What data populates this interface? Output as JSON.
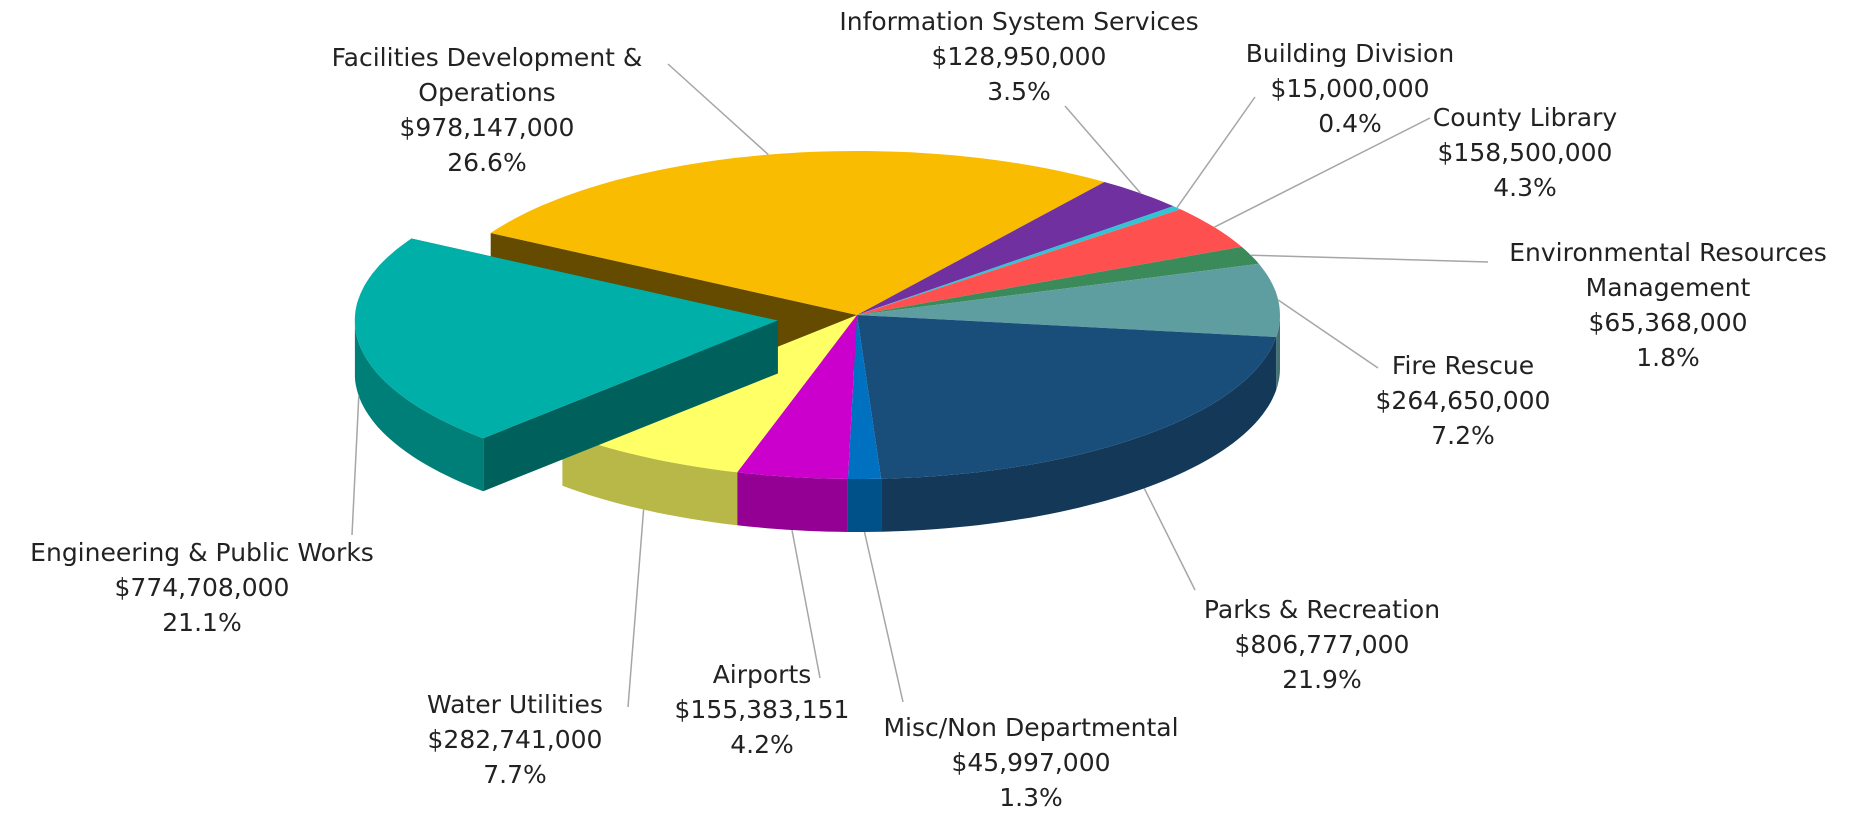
{
  "chart_data": {
    "type": "pie3d",
    "categories": [
      "Facilities Development & Operations",
      "Information System Services",
      "Building Division",
      "County Library",
      "Environmental Resources Management",
      "Fire Rescue",
      "Parks & Recreation",
      "Misc/Non Departmental",
      "Airports",
      "Water Utilities",
      "Engineering & Public Works"
    ],
    "values": [
      978147000,
      128950000,
      15000000,
      158500000,
      65368000,
      264650000,
      806777000,
      45997000,
      155383151,
      282741000,
      774708000
    ],
    "value_labels": [
      "$978,147,000",
      "$128,950,000",
      "$15,000,000",
      "$158,500,000",
      "$65,368,000",
      "$264,650,000",
      "$806,777,000",
      "$45,997,000",
      "$155,383,151",
      "$282,741,000",
      "$774,708,000"
    ],
    "percent_labels": [
      "26.6%",
      "3.5%",
      "0.4%",
      "4.3%",
      "1.8%",
      "7.2%",
      "21.9%",
      "1.3%",
      "4.2%",
      "7.7%",
      "21.1%"
    ],
    "colors": [
      "#F9BC00",
      "#7030A0",
      "#33C4D4",
      "#FF5050",
      "#3A8A5A",
      "#5F9EA0",
      "#1A4E7A",
      "#0070C0",
      "#CC00CC",
      "#FFFF66",
      "#00B0A8"
    ],
    "exploded": [
      10
    ]
  }
}
